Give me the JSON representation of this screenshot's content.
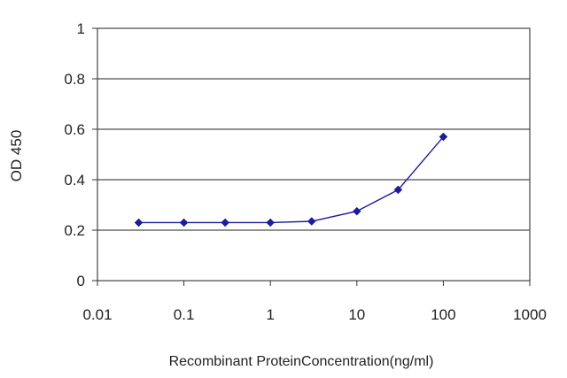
{
  "chart_data": {
    "type": "line",
    "title": "",
    "xlabel": "Recombinant ProteinConcentration(ng/ml)",
    "ylabel": "OD 450",
    "xscale": "log",
    "xlim": [
      0.01,
      1000
    ],
    "ylim": [
      0,
      1
    ],
    "x_ticks": [
      "0.01",
      "0.1",
      "1",
      "10",
      "100",
      "1000"
    ],
    "y_ticks": [
      "0",
      "0.2",
      "0.4",
      "0.6",
      "0.8",
      "1"
    ],
    "grid": "horizontal",
    "legend": "none",
    "series": [
      {
        "x": [
          0.03,
          0.1,
          0.3,
          1,
          3,
          10,
          30,
          100
        ],
        "y": [
          0.23,
          0.23,
          0.23,
          0.23,
          0.235,
          0.275,
          0.36,
          0.57
        ]
      }
    ],
    "colors": {
      "line": "#1c1c9c",
      "marker": "#1c1c9c",
      "grid": "#4d4d4d",
      "axis": "#333333"
    }
  }
}
